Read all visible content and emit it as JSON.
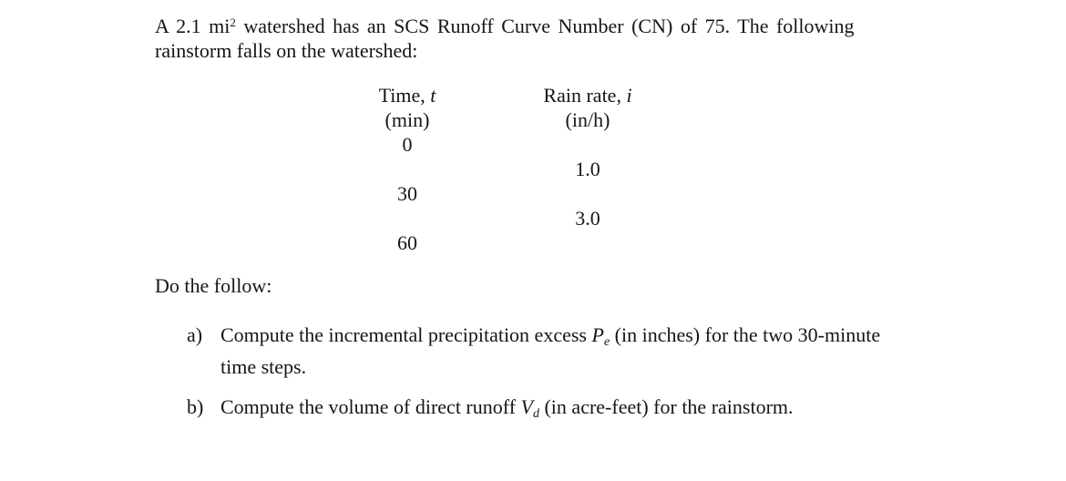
{
  "page": {
    "background": "#ffffff",
    "text_color": "#161616"
  },
  "intro": {
    "line1_before_sup": "A 2.1 mi",
    "line1_sup": "2",
    "line1_after_sup": " watershed has an SCS Runoff Curve Number (CN) of 75. The following",
    "line2": "rainstorm falls on the watershed:"
  },
  "table": {
    "columns": [
      {
        "title_text": "Time, ",
        "title_var": "t",
        "unit": "(min)"
      },
      {
        "title_text": "Rain rate, ",
        "title_var": "i",
        "unit": "(in/h)"
      }
    ],
    "rows": [
      {
        "time": "0",
        "rate": ""
      },
      {
        "time": "",
        "rate": "1.0"
      },
      {
        "time": "30",
        "rate": ""
      },
      {
        "time": "",
        "rate": "3.0"
      },
      {
        "time": "60",
        "rate": ""
      }
    ]
  },
  "instruction": "Do the follow:",
  "tasks": [
    {
      "label": "a)",
      "line1_before_var": "Compute the incremental precipitation excess ",
      "var": "P",
      "var_sub": "e",
      "line1_after_var": " (in inches) for the two 30-minute",
      "line2": "time steps."
    },
    {
      "label": "b)",
      "line1_before_var": "Compute the volume of direct runoff ",
      "var": "V",
      "var_sub": "d",
      "line1_after_var": " (in acre-feet) for the rainstorm.",
      "line2": ""
    }
  ]
}
